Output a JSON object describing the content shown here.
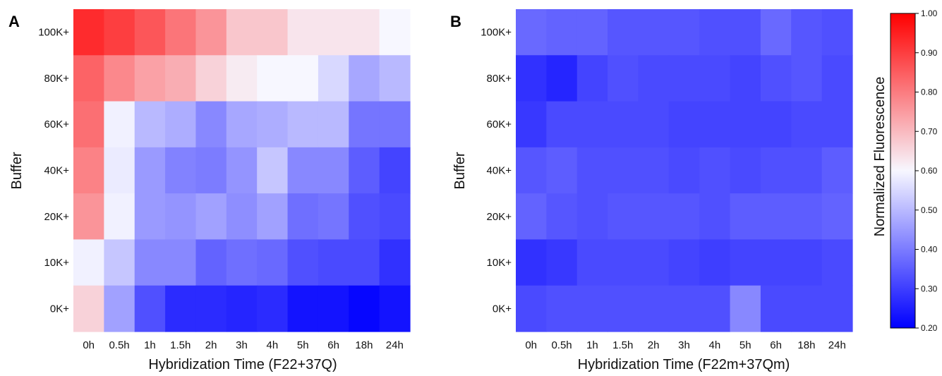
{
  "colors": {
    "low": "#0000ff",
    "mid": "#f7f7ff",
    "high": "#ff0000"
  },
  "chart_data": [
    {
      "type": "heatmap",
      "panel_label": "A",
      "xlabel": "Hybridization Time (F22+37Q)",
      "ylabel": "Buffer",
      "x_categories": [
        "0h",
        "0.5h",
        "1h",
        "1.5h",
        "2h",
        "3h",
        "4h",
        "5h",
        "6h",
        "18h",
        "24h"
      ],
      "y_categories": [
        "100K+",
        "80K+",
        "60K+",
        "40K+",
        "20K+",
        "10K+",
        "0K+"
      ],
      "values": [
        [
          0.93,
          0.9,
          0.86,
          0.81,
          0.76,
          0.68,
          0.68,
          0.63,
          0.63,
          0.63,
          0.6
        ],
        [
          0.84,
          0.78,
          0.74,
          0.72,
          0.66,
          0.62,
          0.6,
          0.6,
          0.55,
          0.47,
          0.5
        ],
        [
          0.82,
          0.59,
          0.5,
          0.48,
          0.42,
          0.47,
          0.48,
          0.5,
          0.5,
          0.39,
          0.39
        ],
        [
          0.79,
          0.58,
          0.45,
          0.41,
          0.4,
          0.44,
          0.52,
          0.42,
          0.42,
          0.35,
          0.31
        ],
        [
          0.76,
          0.59,
          0.45,
          0.44,
          0.46,
          0.43,
          0.46,
          0.38,
          0.39,
          0.33,
          0.32
        ],
        [
          0.59,
          0.52,
          0.42,
          0.42,
          0.36,
          0.38,
          0.37,
          0.33,
          0.32,
          0.32,
          0.28
        ],
        [
          0.66,
          0.46,
          0.33,
          0.27,
          0.27,
          0.26,
          0.27,
          0.23,
          0.23,
          0.21,
          0.23
        ]
      ]
    },
    {
      "type": "heatmap",
      "panel_label": "B",
      "xlabel": "Hybridization Time (F22m+37Qm)",
      "ylabel": "Buffer",
      "x_categories": [
        "0h",
        "0.5h",
        "1h",
        "1.5h",
        "2h",
        "3h",
        "4h",
        "5h",
        "6h",
        "18h",
        "24h"
      ],
      "y_categories": [
        "100K+",
        "80K+",
        "60K+",
        "40K+",
        "20K+",
        "10K+",
        "0K+"
      ],
      "values": [
        [
          0.37,
          0.36,
          0.36,
          0.34,
          0.34,
          0.34,
          0.33,
          0.33,
          0.37,
          0.34,
          0.33
        ],
        [
          0.28,
          0.26,
          0.31,
          0.33,
          0.32,
          0.32,
          0.32,
          0.31,
          0.33,
          0.34,
          0.32
        ],
        [
          0.29,
          0.32,
          0.32,
          0.32,
          0.32,
          0.31,
          0.31,
          0.31,
          0.31,
          0.32,
          0.32
        ],
        [
          0.34,
          0.35,
          0.33,
          0.33,
          0.33,
          0.32,
          0.33,
          0.32,
          0.33,
          0.33,
          0.35
        ],
        [
          0.36,
          0.34,
          0.33,
          0.34,
          0.34,
          0.34,
          0.33,
          0.35,
          0.35,
          0.35,
          0.36
        ],
        [
          0.28,
          0.29,
          0.32,
          0.32,
          0.32,
          0.31,
          0.3,
          0.31,
          0.31,
          0.31,
          0.32
        ],
        [
          0.32,
          0.33,
          0.33,
          0.33,
          0.33,
          0.33,
          0.33,
          0.42,
          0.32,
          0.32,
          0.32
        ]
      ]
    }
  ],
  "colorbar": {
    "label": "Normalized Fluorescence",
    "min": 0.2,
    "max": 1.0,
    "ticks": [
      "0.20",
      "0.30",
      "0.40",
      "0.50",
      "0.60",
      "0.70",
      "0.80",
      "0.90",
      "1.00"
    ]
  }
}
